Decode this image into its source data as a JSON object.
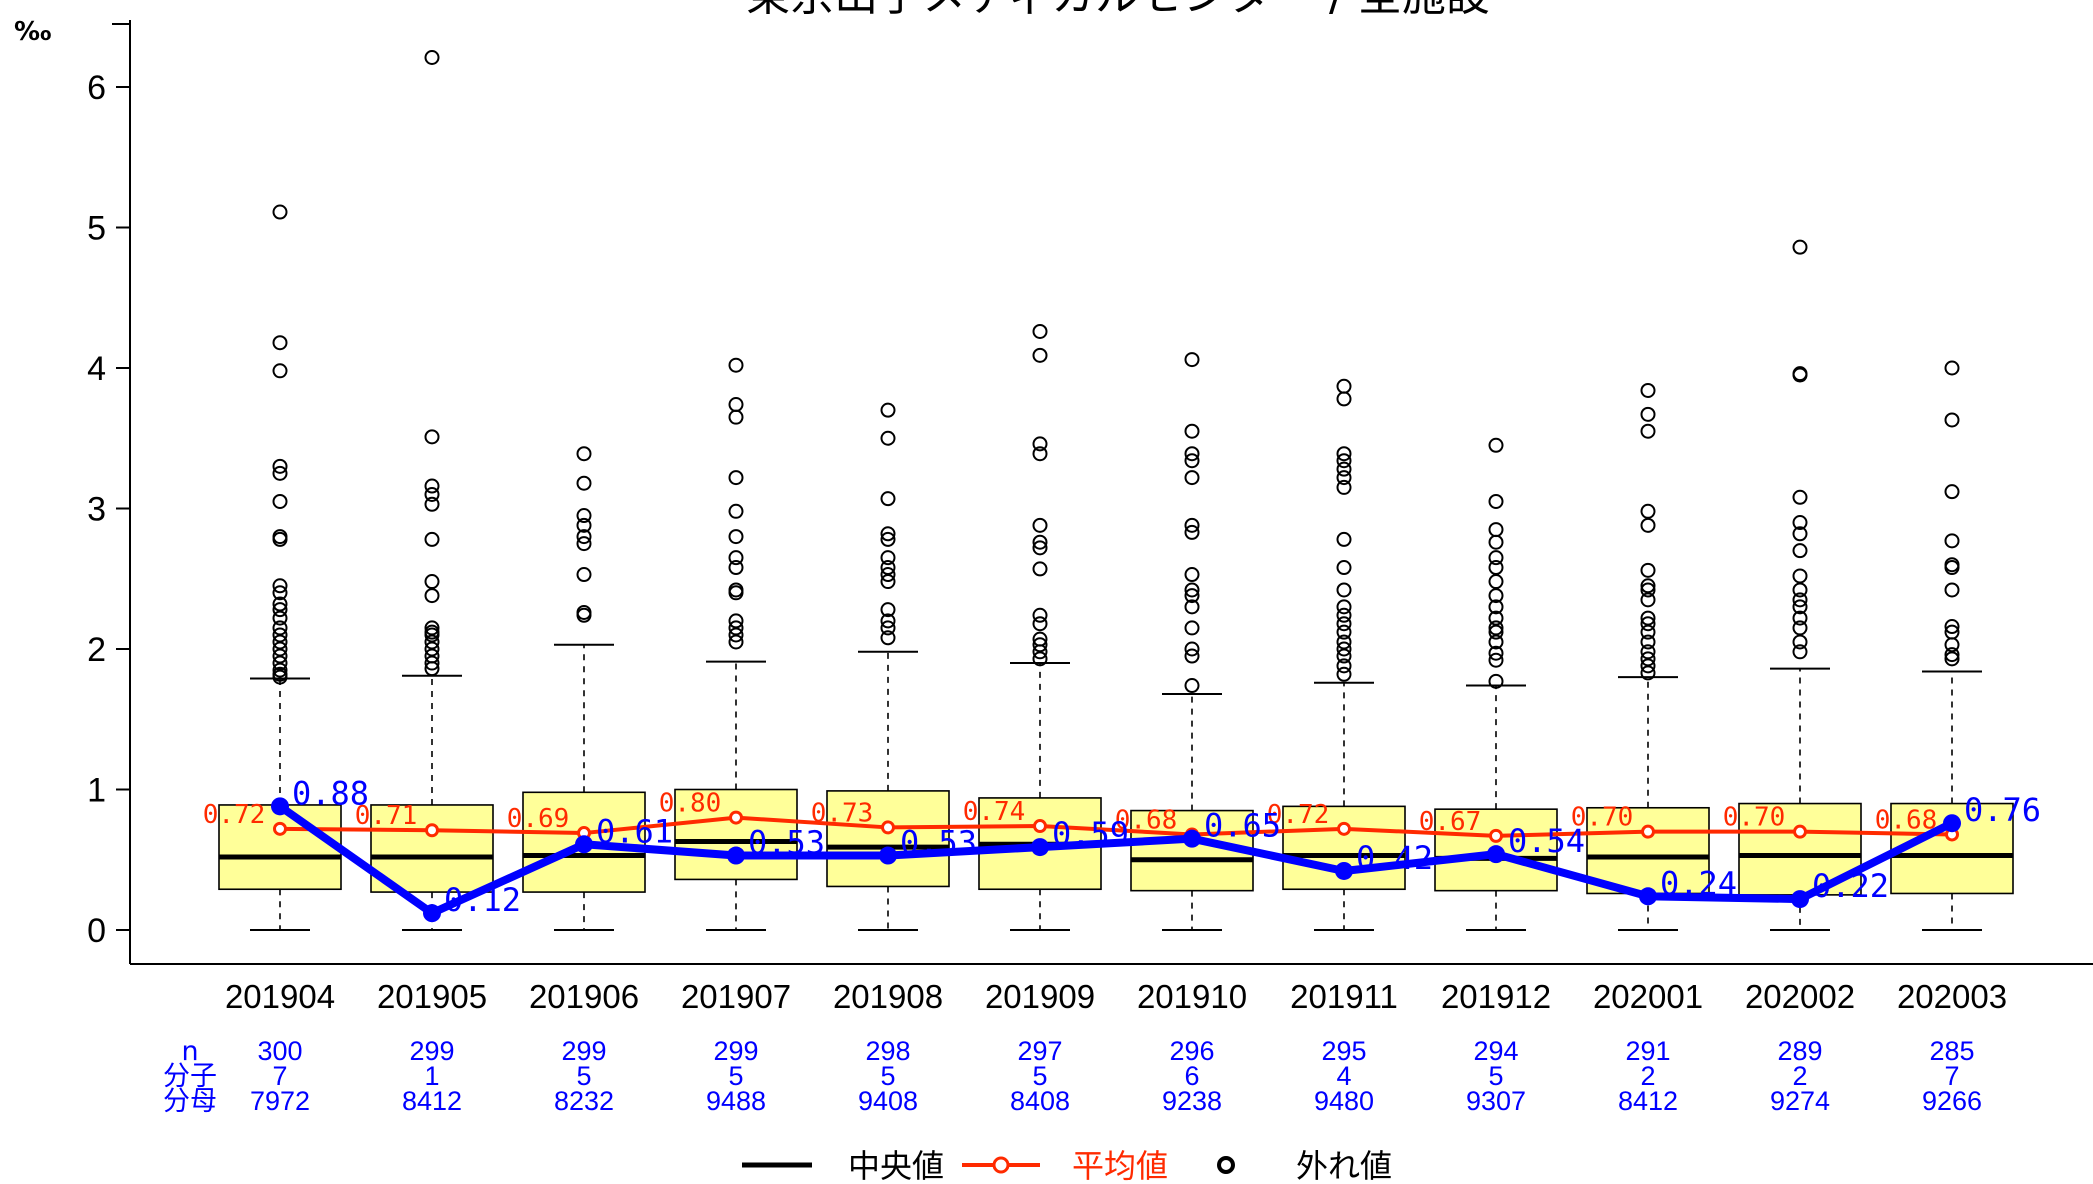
{
  "chart_data": {
    "type": "box",
    "title": "東京山手メディカルセンター / 全施設",
    "ylabel": "‰",
    "ylim": [
      0,
      6.3
    ],
    "yticks": [
      0,
      1,
      2,
      3,
      4,
      5,
      6
    ],
    "categories": [
      "201904",
      "201905",
      "201906",
      "201907",
      "201908",
      "201909",
      "201910",
      "201911",
      "201912",
      "202001",
      "202002",
      "202003"
    ],
    "boxes": [
      {
        "min": 0,
        "q1": 0.29,
        "median": 0.52,
        "q3": 0.89,
        "whisker_high": 1.79,
        "outliers": [
          1.8,
          1.82,
          1.85,
          1.9,
          1.95,
          2.0,
          2.05,
          2.1,
          2.15,
          2.22,
          2.28,
          2.32,
          2.4,
          2.45,
          2.78,
          2.8,
          3.05,
          3.25,
          3.3,
          3.98,
          4.18,
          5.11
        ]
      },
      {
        "min": 0,
        "q1": 0.27,
        "median": 0.52,
        "q3": 0.89,
        "whisker_high": 1.81,
        "outliers": [
          1.86,
          1.9,
          1.95,
          2.0,
          2.05,
          2.1,
          2.12,
          2.15,
          2.38,
          2.48,
          2.78,
          3.03,
          3.1,
          3.16,
          3.51,
          6.21
        ]
      },
      {
        "min": 0,
        "q1": 0.27,
        "median": 0.53,
        "q3": 0.98,
        "whisker_high": 2.03,
        "outliers": [
          2.24,
          2.26,
          2.53,
          2.75,
          2.8,
          2.88,
          2.95,
          3.18,
          3.39
        ]
      },
      {
        "min": 0,
        "q1": 0.36,
        "median": 0.63,
        "q3": 1.0,
        "whisker_high": 1.91,
        "outliers": [
          2.05,
          2.1,
          2.15,
          2.2,
          2.4,
          2.42,
          2.58,
          2.65,
          2.8,
          2.98,
          3.22,
          3.65,
          3.74,
          4.02
        ]
      },
      {
        "min": 0,
        "q1": 0.31,
        "median": 0.59,
        "q3": 0.99,
        "whisker_high": 1.98,
        "outliers": [
          2.08,
          2.15,
          2.2,
          2.28,
          2.48,
          2.53,
          2.58,
          2.65,
          2.78,
          2.82,
          3.07,
          3.5,
          3.7
        ]
      },
      {
        "min": 0,
        "q1": 0.29,
        "median": 0.61,
        "q3": 0.94,
        "whisker_high": 1.9,
        "outliers": [
          1.93,
          1.98,
          2.03,
          2.07,
          2.18,
          2.24,
          2.57,
          2.72,
          2.76,
          2.88,
          3.39,
          3.46,
          4.09,
          4.26
        ]
      },
      {
        "min": 0,
        "q1": 0.28,
        "median": 0.5,
        "q3": 0.85,
        "whisker_high": 1.68,
        "outliers": [
          1.74,
          1.95,
          2.0,
          2.15,
          2.3,
          2.38,
          2.42,
          2.53,
          2.83,
          2.88,
          3.22,
          3.34,
          3.39,
          3.55,
          4.06
        ]
      },
      {
        "min": 0,
        "q1": 0.29,
        "median": 0.53,
        "q3": 0.88,
        "whisker_high": 1.76,
        "outliers": [
          1.82,
          1.88,
          1.95,
          2.0,
          2.05,
          2.12,
          2.18,
          2.24,
          2.3,
          2.42,
          2.58,
          2.78,
          3.15,
          3.22,
          3.28,
          3.34,
          3.39,
          3.78,
          3.87
        ]
      },
      {
        "min": 0,
        "q1": 0.28,
        "median": 0.51,
        "q3": 0.86,
        "whisker_high": 1.74,
        "outliers": [
          1.77,
          1.92,
          1.97,
          2.05,
          2.12,
          2.15,
          2.22,
          2.3,
          2.38,
          2.48,
          2.58,
          2.65,
          2.76,
          2.85,
          3.05,
          3.45
        ]
      },
      {
        "min": 0,
        "q1": 0.26,
        "median": 0.52,
        "q3": 0.87,
        "whisker_high": 1.8,
        "outliers": [
          1.83,
          1.88,
          1.93,
          1.98,
          2.05,
          2.12,
          2.18,
          2.22,
          2.35,
          2.42,
          2.45,
          2.56,
          2.88,
          2.98,
          3.55,
          3.67,
          3.84
        ]
      },
      {
        "min": 0,
        "q1": 0.25,
        "median": 0.53,
        "q3": 0.9,
        "whisker_high": 1.86,
        "outliers": [
          1.98,
          2.05,
          2.15,
          2.22,
          2.3,
          2.35,
          2.42,
          2.52,
          2.7,
          2.82,
          2.9,
          3.08,
          3.95,
          3.96,
          4.86
        ]
      },
      {
        "min": 0,
        "q1": 0.26,
        "median": 0.53,
        "q3": 0.9,
        "whisker_high": 1.84,
        "outliers": [
          1.93,
          1.96,
          2.03,
          2.12,
          2.16,
          2.42,
          2.58,
          2.6,
          2.77,
          3.12,
          3.63,
          4.0
        ]
      }
    ],
    "series": [
      {
        "name": "平均値",
        "color": "#ff2a00",
        "values": [
          0.72,
          0.71,
          0.69,
          0.8,
          0.73,
          0.74,
          0.68,
          0.72,
          0.67,
          0.7,
          0.7,
          0.68
        ]
      },
      {
        "name": "",
        "color": "#0000ff",
        "values": [
          0.88,
          0.12,
          0.61,
          0.53,
          0.53,
          0.59,
          0.65,
          0.42,
          0.54,
          0.24,
          0.22,
          0.76
        ]
      }
    ],
    "table": {
      "row_labels": [
        "n",
        "分子",
        "分母"
      ],
      "n": [
        "300",
        "299",
        "299",
        "299",
        "298",
        "297",
        "296",
        "295",
        "294",
        "291",
        "289",
        "285"
      ],
      "numerator": [
        "7",
        "1",
        "5",
        "5",
        "5",
        "5",
        "6",
        "4",
        "5",
        "2",
        "2",
        "7"
      ],
      "denominator": [
        "7972",
        "8412",
        "8232",
        "9488",
        "9408",
        "8408",
        "9238",
        "9480",
        "9307",
        "8412",
        "9274",
        "9266"
      ]
    },
    "legend": {
      "position": "bottom",
      "items": [
        {
          "label": "中央値",
          "color": "#000000"
        },
        {
          "label": "平均値",
          "color": "#ff2a00"
        },
        {
          "label": "外れ値",
          "color": "#000000"
        }
      ]
    },
    "colors": {
      "box_fill": "#ffff99",
      "box_stroke": "#000000",
      "facility_line": "#0000ff",
      "mean_line": "#ff2a00",
      "table_text": "#0000ff"
    }
  }
}
